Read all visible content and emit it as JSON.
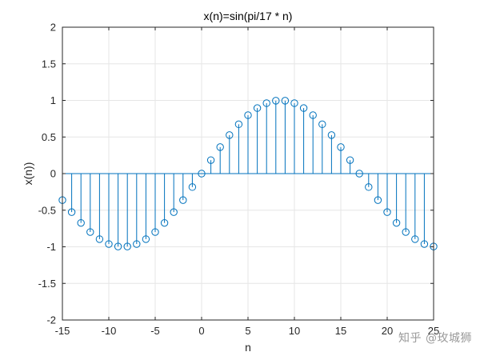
{
  "chart_data": {
    "type": "stem",
    "title": "x(n)=sin(pi/17 * n)",
    "xlabel": "n",
    "ylabel": "x(n))",
    "xlim": [
      -15,
      25
    ],
    "ylim": [
      -2,
      2
    ],
    "xticks": [
      "-15",
      "-10",
      "-5",
      "0",
      "5",
      "10",
      "15",
      "20",
      "25"
    ],
    "yticks": [
      "-2",
      "-1.5",
      "-1",
      "-0.5",
      "0",
      "0.5",
      "1",
      "1.5",
      "2"
    ],
    "grid": true,
    "series": [
      {
        "color": "#0072BD",
        "x": [
          -15,
          -14,
          -13,
          -12,
          -11,
          -10,
          -9,
          -8,
          -7,
          -6,
          -5,
          -4,
          -3,
          -2,
          -1,
          0,
          1,
          2,
          3,
          4,
          5,
          6,
          7,
          8,
          9,
          10,
          11,
          12,
          13,
          14,
          15,
          16,
          17,
          18,
          19,
          20,
          21,
          22,
          23,
          24,
          25
        ],
        "y": [
          -0.362,
          -0.526,
          -0.674,
          -0.798,
          -0.895,
          -0.962,
          -0.996,
          -0.996,
          -0.962,
          -0.895,
          -0.798,
          -0.674,
          -0.526,
          -0.362,
          -0.184,
          0,
          0.184,
          0.362,
          0.526,
          0.674,
          0.798,
          0.895,
          0.962,
          0.996,
          0.996,
          0.962,
          0.895,
          0.798,
          0.674,
          0.526,
          0.362,
          0.184,
          0,
          -0.184,
          -0.362,
          -0.526,
          -0.674,
          -0.798,
          -0.895,
          -0.962,
          -0.996
        ]
      }
    ]
  },
  "watermark": "知乎 @玫城狮"
}
